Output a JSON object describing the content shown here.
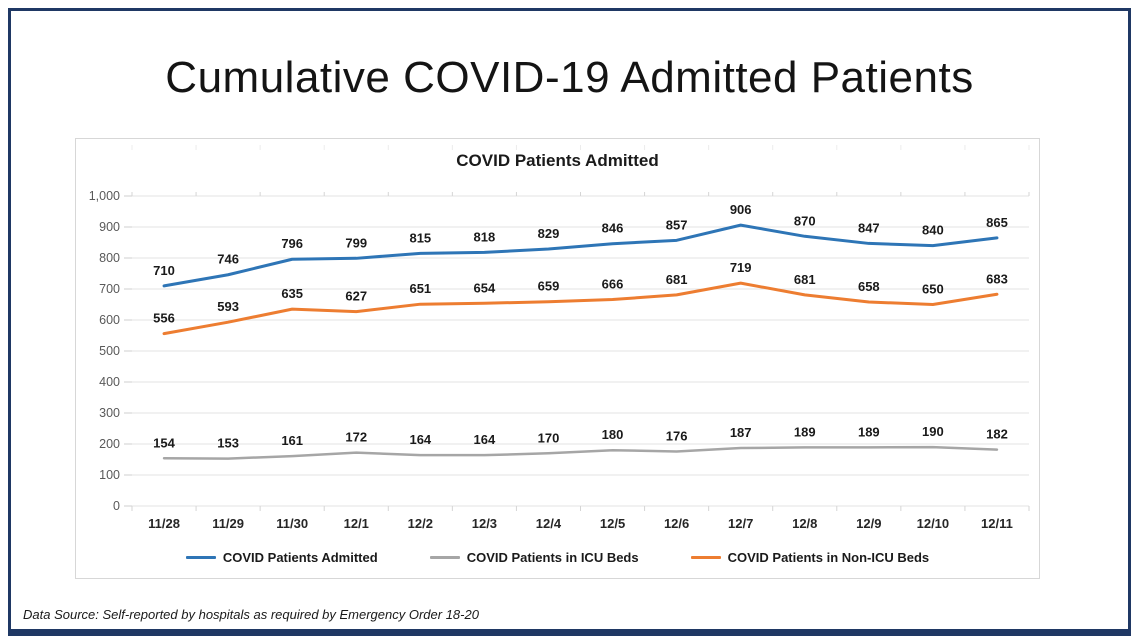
{
  "page": {
    "title": "Cumulative COVID-19 Admitted Patients",
    "footer": "Data Source: Self-reported by hospitals as required by Emergency Order 18-20",
    "border_color": "#1F3864"
  },
  "chart_data": {
    "type": "line",
    "title": "COVID Patients Admitted",
    "categories": [
      "11/28",
      "11/29",
      "11/30",
      "12/1",
      "12/2",
      "12/3",
      "12/4",
      "12/5",
      "12/6",
      "12/7",
      "12/8",
      "12/9",
      "12/10",
      "12/11"
    ],
    "series": [
      {
        "name": "COVID Patients Admitted",
        "color": "#2E75B6",
        "stroke_width": 3,
        "values": [
          710,
          746,
          796,
          799,
          815,
          818,
          829,
          846,
          857,
          906,
          870,
          847,
          840,
          865
        ]
      },
      {
        "name": "COVID Patients in ICU Beds",
        "color": "#A6A6A6",
        "stroke_width": 2.5,
        "values": [
          154,
          153,
          161,
          172,
          164,
          164,
          170,
          180,
          176,
          187,
          189,
          189,
          190,
          182
        ]
      },
      {
        "name": "COVID Patients in Non-ICU Beds",
        "color": "#ED7D31",
        "stroke_width": 3,
        "values": [
          556,
          593,
          635,
          627,
          651,
          654,
          659,
          666,
          681,
          719,
          681,
          658,
          650,
          683
        ]
      }
    ],
    "ylim": [
      0,
      1000
    ],
    "ytick_step": 100,
    "grid": true,
    "data_labels": true,
    "legend_position": "bottom",
    "gridline_color": "#E3E3E3",
    "tick_color": "#CFCFCF",
    "axis_label_color": "#595959",
    "category_label_color": "#262626",
    "data_label_color": "#1A1A1A"
  }
}
